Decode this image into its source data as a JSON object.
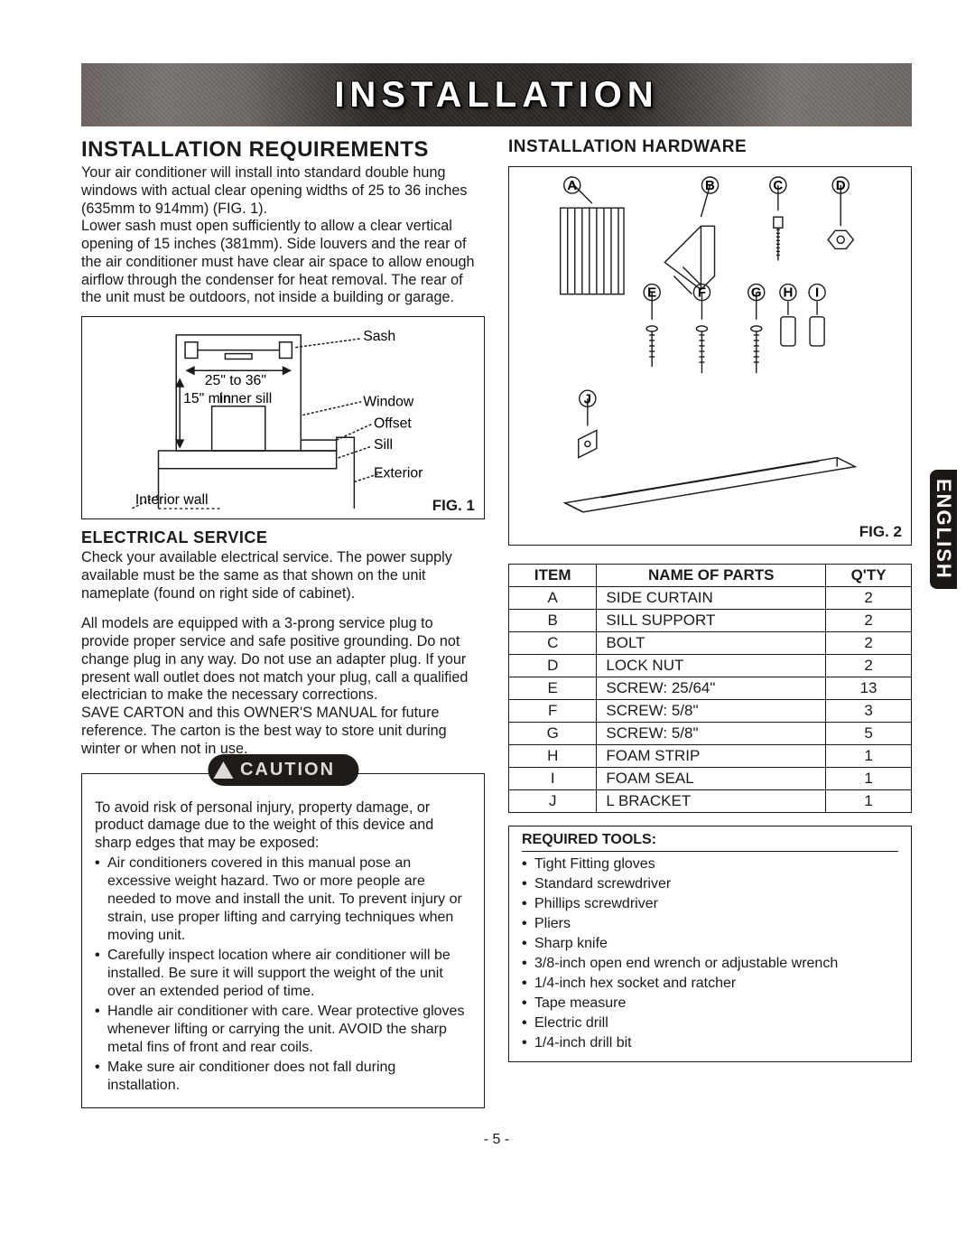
{
  "banner": {
    "title": "INSTALLATION"
  },
  "left": {
    "h1": "INSTALLATION REQUIREMENTS",
    "intro1": "Your air conditioner will install into standard double hung windows with actual clear opening widths of 25 to 36 inches (635mm to 914mm) (FIG. 1).",
    "intro2": "Lower sash must open sufficiently to allow a clear vertical opening of 15 inches (381mm). Side louvers and the rear of the air conditioner must have clear air space to allow enough airflow through the condenser for heat removal. The rear of the unit must be outdoors, not inside a building or garage.",
    "fig1": {
      "label": "FIG. 1",
      "sash": "Sash",
      "width": "25\" to 36\"",
      "min": "15\" min",
      "inner": "Inner sill",
      "window": "Window",
      "offset": "Offset",
      "sill": "Sill",
      "exterior": "Exterior",
      "interior": "Interior wall"
    },
    "electrical": {
      "h": "ELECTRICAL SERVICE",
      "p1": "Check your available electrical service. The power supply available must be the same as that shown on the unit nameplate (found on right side of cabinet).",
      "p2": "All models are equipped with a 3-prong service plug to provide proper service and safe positive grounding. Do not change plug in any way. Do not use an adapter plug. If your present wall outlet does not match your plug, call a qualified electrician to make the necessary corrections.",
      "p3": "SAVE CARTON and this OWNER'S MANUAL for future reference. The carton is the best way to store unit during winter or when not in use."
    },
    "caution": {
      "badge": "CAUTION",
      "lead": "To avoid risk of personal injury, property damage, or product damage due to the weight of this device and sharp edges that may be exposed:",
      "items": [
        "Air conditioners covered in this manual pose an excessive weight hazard. Two or more people are needed to move and install the unit. To prevent injury or strain, use proper lifting and carrying techniques when moving unit.",
        "Carefully inspect location where air conditioner will be installed. Be sure it will support the weight of the unit over an extended period of time.",
        "Handle air conditioner with care. Wear protective gloves whenever lifting or carrying the unit. AVOID the sharp metal fins of front and rear coils.",
        "Make sure air conditioner does not fall during installation."
      ]
    }
  },
  "right": {
    "h1": "INSTALLATION HARDWARE",
    "fig2": {
      "label": "FIG. 2"
    },
    "hw_letters": [
      "A",
      "B",
      "C",
      "D",
      "E",
      "F",
      "G",
      "H",
      "I",
      "J"
    ],
    "parts": {
      "headers": [
        "ITEM",
        "NAME OF PARTS",
        "Q'TY"
      ],
      "rows": [
        [
          "A",
          "SIDE CURTAIN",
          "2"
        ],
        [
          "B",
          "SILL SUPPORT",
          "2"
        ],
        [
          "C",
          "BOLT",
          "2"
        ],
        [
          "D",
          "LOCK NUT",
          "2"
        ],
        [
          "E",
          "SCREW: 25/64\"",
          "13"
        ],
        [
          "F",
          "SCREW: 5/8\"",
          "3"
        ],
        [
          "G",
          "SCREW: 5/8\"",
          "5"
        ],
        [
          "H",
          "FOAM STRIP",
          "1"
        ],
        [
          "I",
          "FOAM SEAL",
          "1"
        ],
        [
          "J",
          "L BRACKET",
          "1"
        ]
      ]
    },
    "tools": {
      "title": "REQUIRED TOOLS:",
      "items": [
        "Tight Fitting gloves",
        "Standard screwdriver",
        "Phillips screwdriver",
        "Pliers",
        "Sharp knife",
        "3/8-inch open end wrench or adjustable wrench",
        "1/4-inch hex socket and ratcher",
        "Tape measure",
        "Electric drill",
        "1/4-inch drill bit"
      ]
    }
  },
  "sideTab": "ENGLISH",
  "pageNum": "- 5 -",
  "colors": {
    "ink": "#1a1a1a",
    "bannerDark": "#2e2a27",
    "bannerMid": "#6b6460",
    "white": "#ffffff"
  }
}
